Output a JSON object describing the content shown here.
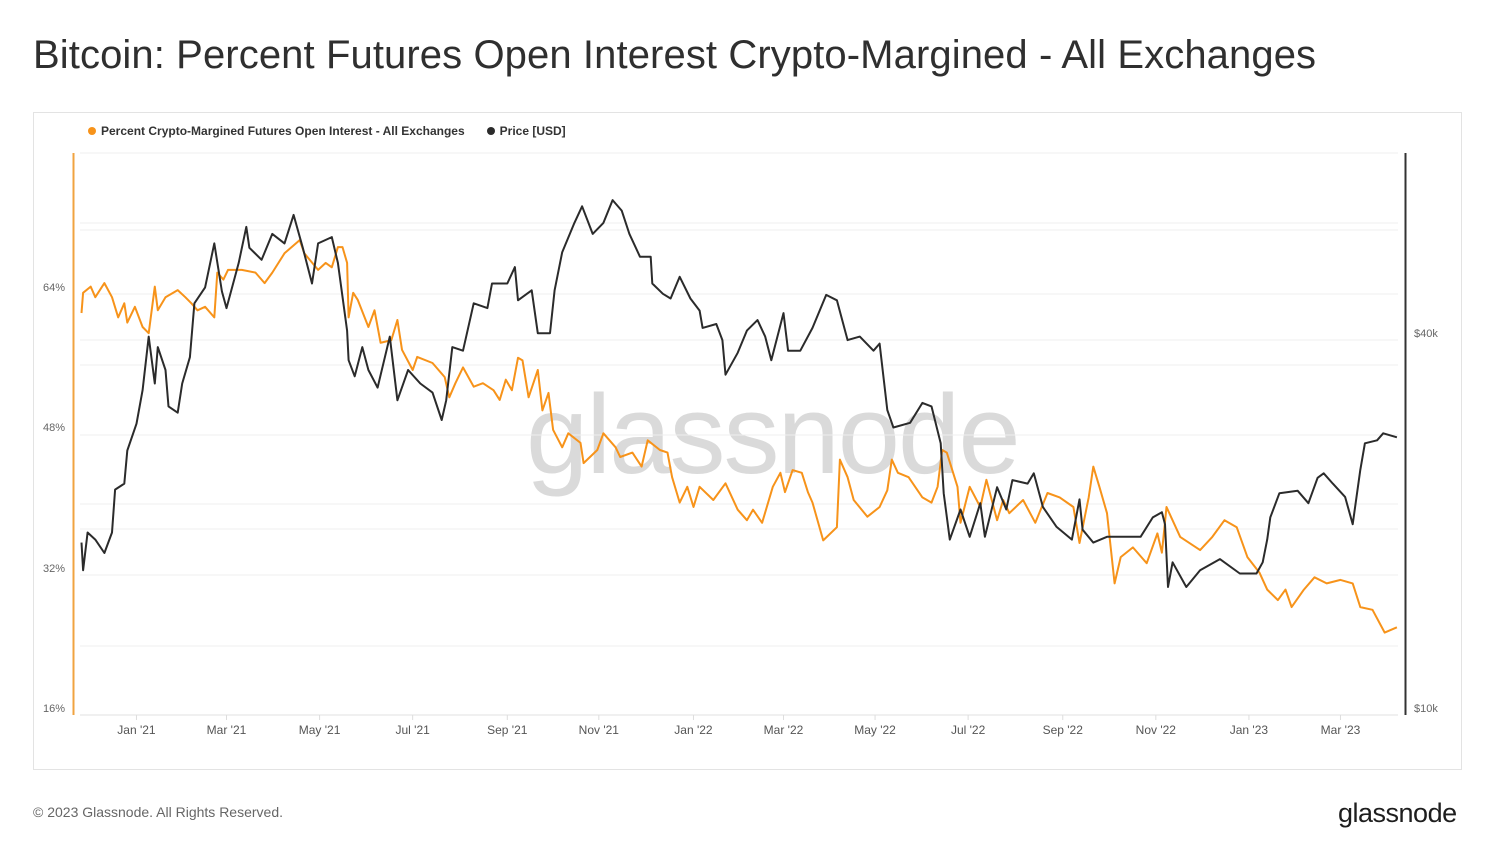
{
  "title": "Bitcoin: Percent Futures Open Interest Crypto-Margined - All Exchanges",
  "footer": "© 2023 Glassnode. All Rights Reserved.",
  "logo": "glassnode",
  "watermark": "glassnode",
  "chart_data": {
    "type": "line",
    "title": "Bitcoin: Percent Futures Open Interest Crypto-Margined - All Exchanges",
    "x_origin": "2020-11-25",
    "x_unit": "days since x_origin",
    "xlim_days": [
      0,
      864
    ],
    "x_tick_labels": [
      "Jan '21",
      "Mar '21",
      "May '21",
      "Jul '21",
      "Sep '21",
      "Nov '21",
      "Jan '22",
      "Mar '22",
      "May '22",
      "Jul '22",
      "Sep '22",
      "Nov '22",
      "Jan '23",
      "Mar '23"
    ],
    "x_tick_days": [
      37,
      96,
      157,
      218,
      280,
      340,
      402,
      461,
      521,
      582,
      644,
      705,
      766,
      826
    ],
    "y_left": {
      "label": "Percent",
      "scale": "linear",
      "ylim": [
        16,
        80
      ],
      "tick_labels": [
        "16%",
        "32%",
        "48%",
        "64%"
      ],
      "ticks": [
        16,
        32,
        48,
        64
      ]
    },
    "y_right": {
      "label": "Price [USD]",
      "scale": "log",
      "ylim_k": [
        10,
        80
      ],
      "tick_labels": [
        "$10k",
        "$40k"
      ],
      "ticks_k": [
        10,
        40
      ]
    },
    "grid": true,
    "legend_position": "top-left",
    "series": [
      {
        "name": "Percent Crypto-Margined Futures Open Interest - All Exchanges",
        "axis": "left",
        "color": "#f7931a",
        "unit": "%",
        "points": [
          [
            1,
            61.1
          ],
          [
            2,
            63.4
          ],
          [
            7,
            64.1
          ],
          [
            10,
            62.9
          ],
          [
            16,
            64.5
          ],
          [
            21,
            62.9
          ],
          [
            25,
            60.6
          ],
          [
            29,
            62.2
          ],
          [
            31,
            60.0
          ],
          [
            36,
            61.8
          ],
          [
            41,
            59.5
          ],
          [
            45,
            58.8
          ],
          [
            49,
            64.1
          ],
          [
            51,
            61.4
          ],
          [
            56,
            62.9
          ],
          [
            64,
            63.7
          ],
          [
            69,
            62.9
          ],
          [
            73,
            62.2
          ],
          [
            77,
            61.4
          ],
          [
            82,
            61.8
          ],
          [
            88,
            60.6
          ],
          [
            90,
            65.7
          ],
          [
            94,
            64.9
          ],
          [
            97,
            66.0
          ],
          [
            106,
            66.0
          ],
          [
            115,
            65.7
          ],
          [
            121,
            64.5
          ],
          [
            126,
            65.7
          ],
          [
            134,
            67.9
          ],
          [
            144,
            69.4
          ],
          [
            147,
            67.9
          ],
          [
            156,
            66.0
          ],
          [
            161,
            66.8
          ],
          [
            165,
            66.3
          ],
          [
            169,
            68.6
          ],
          [
            172,
            68.6
          ],
          [
            175,
            66.8
          ],
          [
            176,
            60.6
          ],
          [
            179,
            63.4
          ],
          [
            182,
            62.6
          ],
          [
            189,
            59.5
          ],
          [
            193,
            61.4
          ],
          [
            197,
            57.7
          ],
          [
            204,
            58.0
          ],
          [
            208,
            60.3
          ],
          [
            211,
            56.9
          ],
          [
            218,
            54.6
          ],
          [
            221,
            56.1
          ],
          [
            231,
            55.4
          ],
          [
            239,
            53.8
          ],
          [
            242,
            51.5
          ],
          [
            246,
            53.1
          ],
          [
            251,
            54.9
          ],
          [
            258,
            52.7
          ],
          [
            264,
            53.1
          ],
          [
            271,
            52.3
          ],
          [
            275,
            51.2
          ],
          [
            279,
            53.5
          ],
          [
            283,
            52.3
          ],
          [
            287,
            56.0
          ],
          [
            290,
            55.7
          ],
          [
            294,
            51.5
          ],
          [
            300,
            54.6
          ],
          [
            303,
            50.0
          ],
          [
            307,
            52.0
          ],
          [
            310,
            47.8
          ],
          [
            316,
            45.8
          ],
          [
            320,
            47.4
          ],
          [
            328,
            46.3
          ],
          [
            330,
            44.0
          ],
          [
            339,
            45.5
          ],
          [
            343,
            47.4
          ],
          [
            351,
            45.8
          ],
          [
            354,
            44.7
          ],
          [
            362,
            45.2
          ],
          [
            368,
            43.6
          ],
          [
            372,
            46.6
          ],
          [
            380,
            45.5
          ],
          [
            385,
            45.2
          ],
          [
            388,
            42.4
          ],
          [
            393,
            39.5
          ],
          [
            398,
            41.3
          ],
          [
            402,
            39.0
          ],
          [
            406,
            41.3
          ],
          [
            415,
            39.8
          ],
          [
            423,
            41.7
          ],
          [
            431,
            38.7
          ],
          [
            437,
            37.5
          ],
          [
            441,
            38.7
          ],
          [
            447,
            37.2
          ],
          [
            454,
            41.3
          ],
          [
            459,
            42.9
          ],
          [
            462,
            40.7
          ],
          [
            467,
            43.2
          ],
          [
            473,
            42.9
          ],
          [
            477,
            40.7
          ],
          [
            480,
            39.5
          ],
          [
            487,
            35.2
          ],
          [
            496,
            36.7
          ],
          [
            498,
            44.4
          ],
          [
            503,
            42.4
          ],
          [
            507,
            39.8
          ],
          [
            516,
            37.9
          ],
          [
            524,
            39.0
          ],
          [
            529,
            40.9
          ],
          [
            532,
            44.4
          ],
          [
            536,
            42.9
          ],
          [
            543,
            42.4
          ],
          [
            552,
            40.1
          ],
          [
            558,
            39.5
          ],
          [
            562,
            41.3
          ],
          [
            565,
            45.5
          ],
          [
            568,
            45.2
          ],
          [
            575,
            41.3
          ],
          [
            577,
            37.2
          ],
          [
            583,
            41.3
          ],
          [
            590,
            39.0
          ],
          [
            594,
            42.1
          ],
          [
            601,
            37.5
          ],
          [
            605,
            39.8
          ],
          [
            609,
            38.3
          ],
          [
            618,
            39.8
          ],
          [
            626,
            37.2
          ],
          [
            634,
            40.6
          ],
          [
            642,
            40.1
          ],
          [
            651,
            39.0
          ],
          [
            655,
            34.9
          ],
          [
            661,
            40.1
          ],
          [
            664,
            43.6
          ],
          [
            668,
            41.3
          ],
          [
            673,
            38.3
          ],
          [
            678,
            30.3
          ],
          [
            682,
            33.3
          ],
          [
            690,
            34.4
          ],
          [
            699,
            32.6
          ],
          [
            706,
            36.0
          ],
          [
            709,
            33.8
          ],
          [
            712,
            39.0
          ],
          [
            721,
            35.6
          ],
          [
            734,
            34.1
          ],
          [
            742,
            35.6
          ],
          [
            750,
            37.5
          ],
          [
            758,
            36.7
          ],
          [
            765,
            33.3
          ],
          [
            773,
            31.5
          ],
          [
            778,
            29.6
          ],
          [
            785,
            28.4
          ],
          [
            790,
            29.6
          ],
          [
            794,
            27.6
          ],
          [
            802,
            29.6
          ],
          [
            809,
            31.0
          ],
          [
            817,
            30.3
          ],
          [
            826,
            30.7
          ],
          [
            834,
            30.3
          ],
          [
            839,
            27.6
          ],
          [
            847,
            27.3
          ],
          [
            855,
            24.7
          ],
          [
            863,
            25.3
          ]
        ]
      },
      {
        "name": "Price [USD]",
        "axis": "right",
        "color": "#2b2b2b",
        "unit": "USD thousands",
        "points": [
          [
            1,
            18.5
          ],
          [
            2,
            16.7
          ],
          [
            5,
            19.2
          ],
          [
            10,
            18.7
          ],
          [
            16,
            17.8
          ],
          [
            21,
            19.2
          ],
          [
            23,
            22.5
          ],
          [
            29,
            23.0
          ],
          [
            31,
            26.0
          ],
          [
            37,
            28.7
          ],
          [
            41,
            32.5
          ],
          [
            45,
            39.6
          ],
          [
            49,
            33.3
          ],
          [
            51,
            38.1
          ],
          [
            56,
            35.0
          ],
          [
            58,
            30.6
          ],
          [
            64,
            29.9
          ],
          [
            67,
            33.3
          ],
          [
            72,
            36.7
          ],
          [
            75,
            44.8
          ],
          [
            82,
            47.5
          ],
          [
            88,
            55.9
          ],
          [
            93,
            46.8
          ],
          [
            96,
            44.0
          ],
          [
            104,
            52.0
          ],
          [
            109,
            59.4
          ],
          [
            111,
            55.0
          ],
          [
            119,
            52.6
          ],
          [
            126,
            57.9
          ],
          [
            134,
            55.9
          ],
          [
            140,
            62.1
          ],
          [
            146,
            55.0
          ],
          [
            152,
            48.2
          ],
          [
            156,
            55.9
          ],
          [
            165,
            57.2
          ],
          [
            169,
            52.0
          ],
          [
            175,
            40.5
          ],
          [
            176,
            36.3
          ],
          [
            180,
            34.2
          ],
          [
            185,
            38.1
          ],
          [
            189,
            35.0
          ],
          [
            195,
            32.8
          ],
          [
            203,
            39.6
          ],
          [
            208,
            31.3
          ],
          [
            215,
            35.0
          ],
          [
            223,
            33.3
          ],
          [
            231,
            32.2
          ],
          [
            237,
            29.1
          ],
          [
            240,
            31.3
          ],
          [
            244,
            38.1
          ],
          [
            251,
            37.6
          ],
          [
            258,
            44.8
          ],
          [
            267,
            44.0
          ],
          [
            270,
            48.2
          ],
          [
            280,
            48.2
          ],
          [
            285,
            51.2
          ],
          [
            287,
            45.3
          ],
          [
            296,
            47.0
          ],
          [
            300,
            40.1
          ],
          [
            308,
            40.1
          ],
          [
            311,
            47.0
          ],
          [
            316,
            54.1
          ],
          [
            324,
            60.3
          ],
          [
            329,
            64.1
          ],
          [
            336,
            57.9
          ],
          [
            343,
            60.3
          ],
          [
            349,
            65.6
          ],
          [
            355,
            63.1
          ],
          [
            360,
            57.9
          ],
          [
            367,
            53.2
          ],
          [
            374,
            53.2
          ],
          [
            375,
            48.2
          ],
          [
            382,
            46.4
          ],
          [
            387,
            45.6
          ],
          [
            393,
            49.4
          ],
          [
            400,
            45.6
          ],
          [
            406,
            43.6
          ],
          [
            408,
            40.9
          ],
          [
            417,
            41.5
          ],
          [
            421,
            39.1
          ],
          [
            423,
            34.4
          ],
          [
            431,
            37.3
          ],
          [
            437,
            40.5
          ],
          [
            444,
            42.1
          ],
          [
            449,
            39.6
          ],
          [
            453,
            36.3
          ],
          [
            461,
            43.2
          ],
          [
            464,
            37.6
          ],
          [
            472,
            37.6
          ],
          [
            480,
            40.9
          ],
          [
            489,
            46.2
          ],
          [
            496,
            45.3
          ],
          [
            503,
            39.1
          ],
          [
            511,
            39.6
          ],
          [
            520,
            37.6
          ],
          [
            524,
            38.6
          ],
          [
            529,
            30.2
          ],
          [
            533,
            28.3
          ],
          [
            544,
            28.8
          ],
          [
            552,
            31.0
          ],
          [
            558,
            30.6
          ],
          [
            564,
            26.7
          ],
          [
            566,
            22.2
          ],
          [
            570,
            18.7
          ],
          [
            577,
            20.9
          ],
          [
            583,
            18.9
          ],
          [
            590,
            21.4
          ],
          [
            593,
            18.9
          ],
          [
            601,
            22.7
          ],
          [
            607,
            20.9
          ],
          [
            611,
            23.3
          ],
          [
            621,
            23.0
          ],
          [
            625,
            23.9
          ],
          [
            631,
            21.1
          ],
          [
            640,
            19.6
          ],
          [
            650,
            18.7
          ],
          [
            655,
            21.7
          ],
          [
            657,
            19.4
          ],
          [
            664,
            18.5
          ],
          [
            673,
            18.9
          ],
          [
            682,
            18.9
          ],
          [
            695,
            18.9
          ],
          [
            703,
            20.3
          ],
          [
            709,
            20.7
          ],
          [
            711,
            19.8
          ],
          [
            713,
            15.7
          ],
          [
            716,
            17.2
          ],
          [
            725,
            15.7
          ],
          [
            734,
            16.7
          ],
          [
            747,
            17.4
          ],
          [
            760,
            16.5
          ],
          [
            771,
            16.5
          ],
          [
            775,
            17.2
          ],
          [
            778,
            18.7
          ],
          [
            780,
            20.3
          ],
          [
            786,
            22.2
          ],
          [
            798,
            22.4
          ],
          [
            805,
            21.4
          ],
          [
            811,
            23.5
          ],
          [
            815,
            23.9
          ],
          [
            821,
            23.0
          ],
          [
            829,
            21.9
          ],
          [
            834,
            19.8
          ],
          [
            839,
            24.2
          ],
          [
            842,
            26.7
          ],
          [
            850,
            27.0
          ],
          [
            854,
            27.7
          ],
          [
            863,
            27.3
          ]
        ]
      }
    ]
  }
}
